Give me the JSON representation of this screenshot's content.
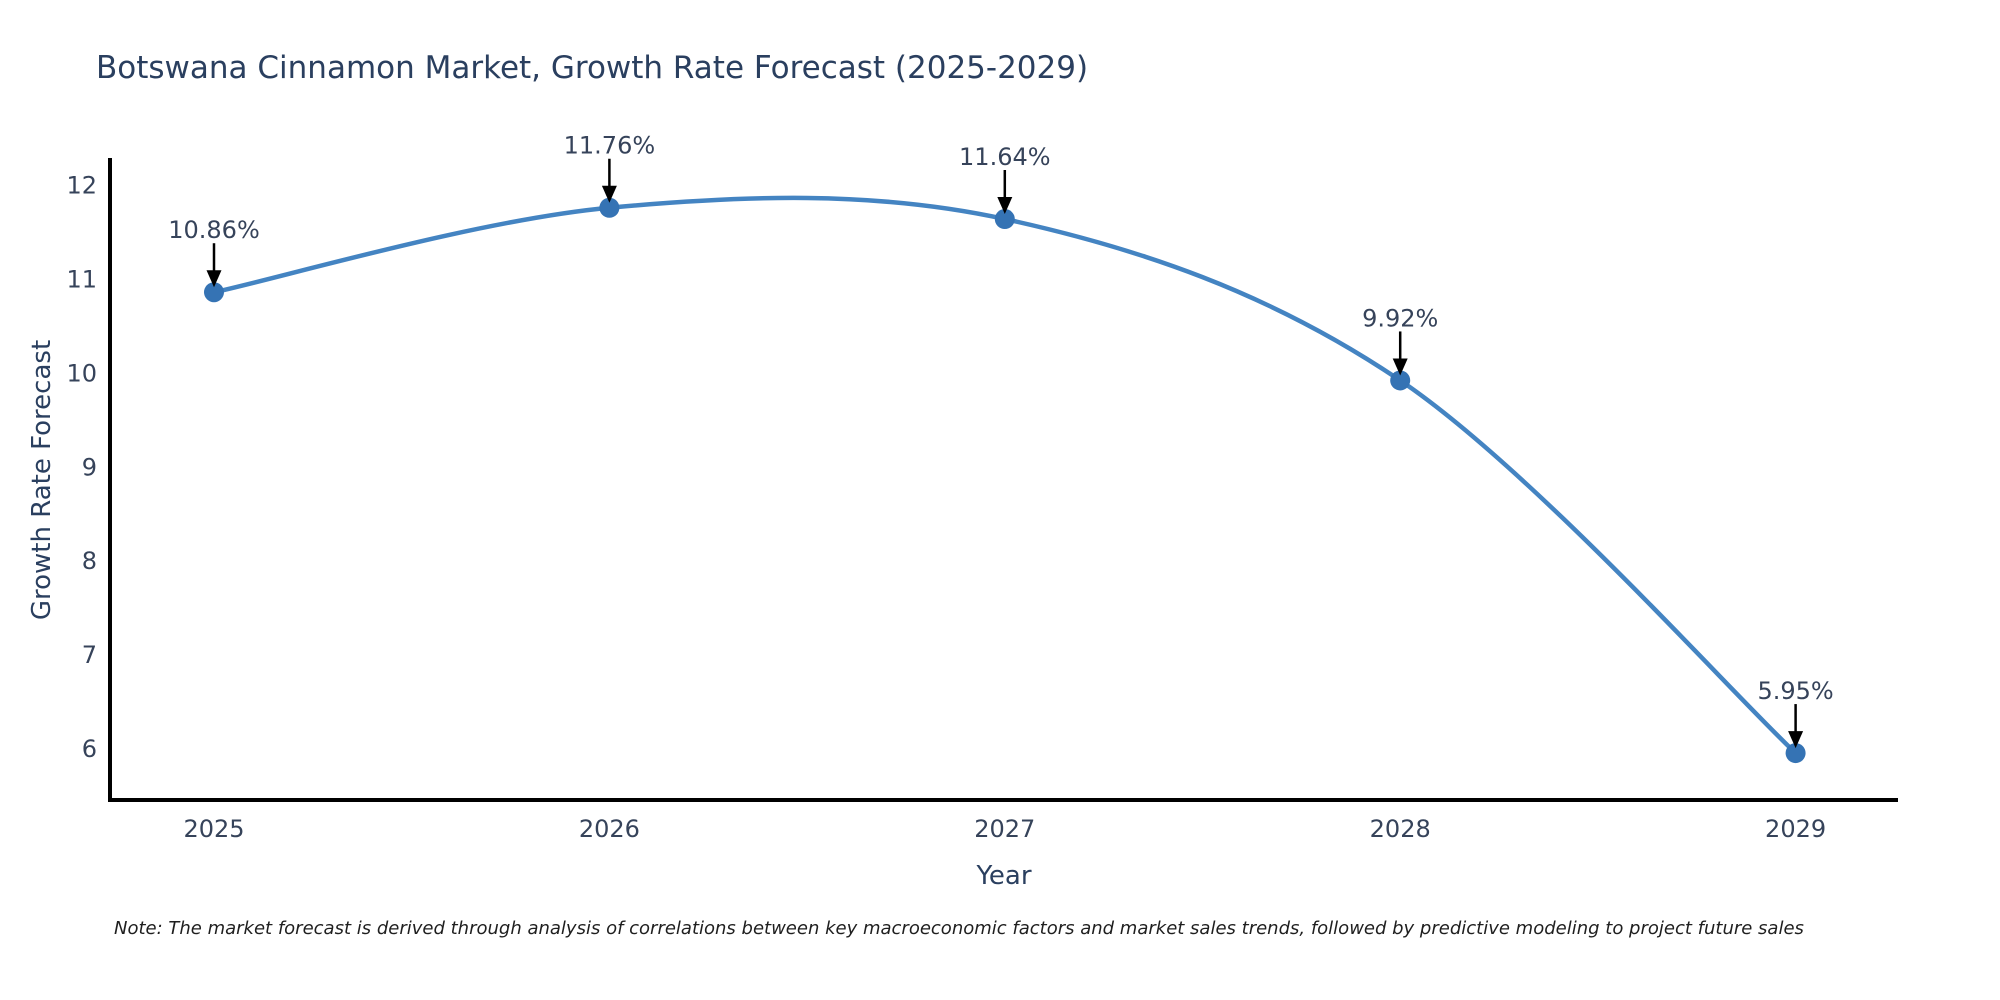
{
  "page": {
    "background": "#ffffff"
  },
  "note": "Note: The market forecast is derived through analysis of correlations between key macroeconomic factors and market sales trends, followed by predictive modeling to project future sales",
  "chart_data": {
    "type": "line",
    "line_shape": "spline",
    "title": "Botswana Cinnamon Market, Growth Rate Forecast (2025-2029)",
    "xlabel": "Year",
    "ylabel": "Growth Rate Forecast",
    "categories": [
      "2025",
      "2026",
      "2027",
      "2028",
      "2029"
    ],
    "series": [
      {
        "name": "Growth Rate Forecast",
        "values": [
          10.86,
          11.76,
          11.64,
          9.92,
          5.95
        ]
      }
    ],
    "point_labels": [
      "10.86%",
      "11.76%",
      "11.64%",
      "9.92%",
      "5.95%"
    ],
    "yticks": [
      6,
      7,
      8,
      9,
      10,
      11,
      12
    ],
    "ylim": [
      5.45,
      12.29
    ],
    "grid": false,
    "legend": "none",
    "annotation_style": "value-label-with-down-arrow",
    "colors": {
      "line": "#4484c2",
      "marker": "#3573b4",
      "axis": "#000000",
      "arrow": "#000000",
      "title": "#2a3f5f",
      "tick": "#36435a",
      "annotation": "#36435a",
      "note": "#1f1f1f",
      "background": "#ffffff"
    }
  }
}
